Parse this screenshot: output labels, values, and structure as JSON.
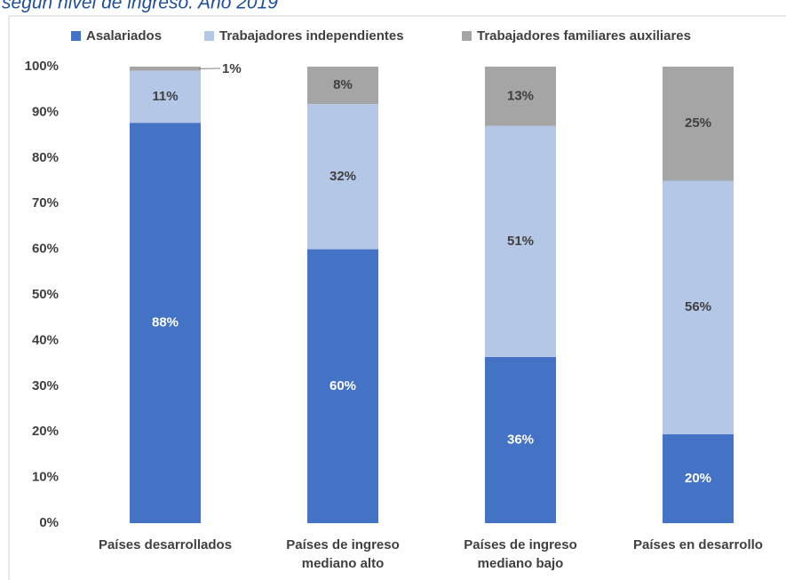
{
  "chart_data": {
    "type": "stacked_bar",
    "title": "según nivel de ingreso. Año 2019",
    "categories": [
      "Países desarrollados",
      "Países de ingreso mediano alto",
      "Países de ingreso mediano bajo",
      "Países en desarrollo"
    ],
    "series": [
      {
        "name": "Asalariados",
        "color": "#4472c4",
        "values": [
          87.7,
          60,
          36.4,
          19.5
        ],
        "value_labels": [
          "88%",
          "60%",
          "36%",
          "20%"
        ]
      },
      {
        "name": "Trabajadores independientes",
        "color": "#b4c7e7",
        "values": [
          11.4,
          31.8,
          50.6,
          55.5
        ],
        "value_labels": [
          "11%",
          "32%",
          "51%",
          "56%"
        ]
      },
      {
        "name": "Trabajadores familiares auxiliares",
        "color": "#a5a5a5",
        "values": [
          0.9,
          8.2,
          13,
          25
        ],
        "value_labels": [
          "1%",
          "8%",
          "13%",
          "25%"
        ]
      }
    ],
    "ylim": [
      0,
      100
    ],
    "yticks": [
      {
        "value": 0,
        "label": "0%"
      },
      {
        "value": 10,
        "label": "10%"
      },
      {
        "value": 20,
        "label": "20%"
      },
      {
        "value": 30,
        "label": "30%"
      },
      {
        "value": 40,
        "label": "40%"
      },
      {
        "value": 50,
        "label": "50%"
      },
      {
        "value": 60,
        "label": "60%"
      },
      {
        "value": 70,
        "label": "70%"
      },
      {
        "value": 80,
        "label": "80%"
      },
      {
        "value": 90,
        "label": "90%"
      },
      {
        "value": 100,
        "label": "100%"
      }
    ],
    "legend": "top"
  }
}
